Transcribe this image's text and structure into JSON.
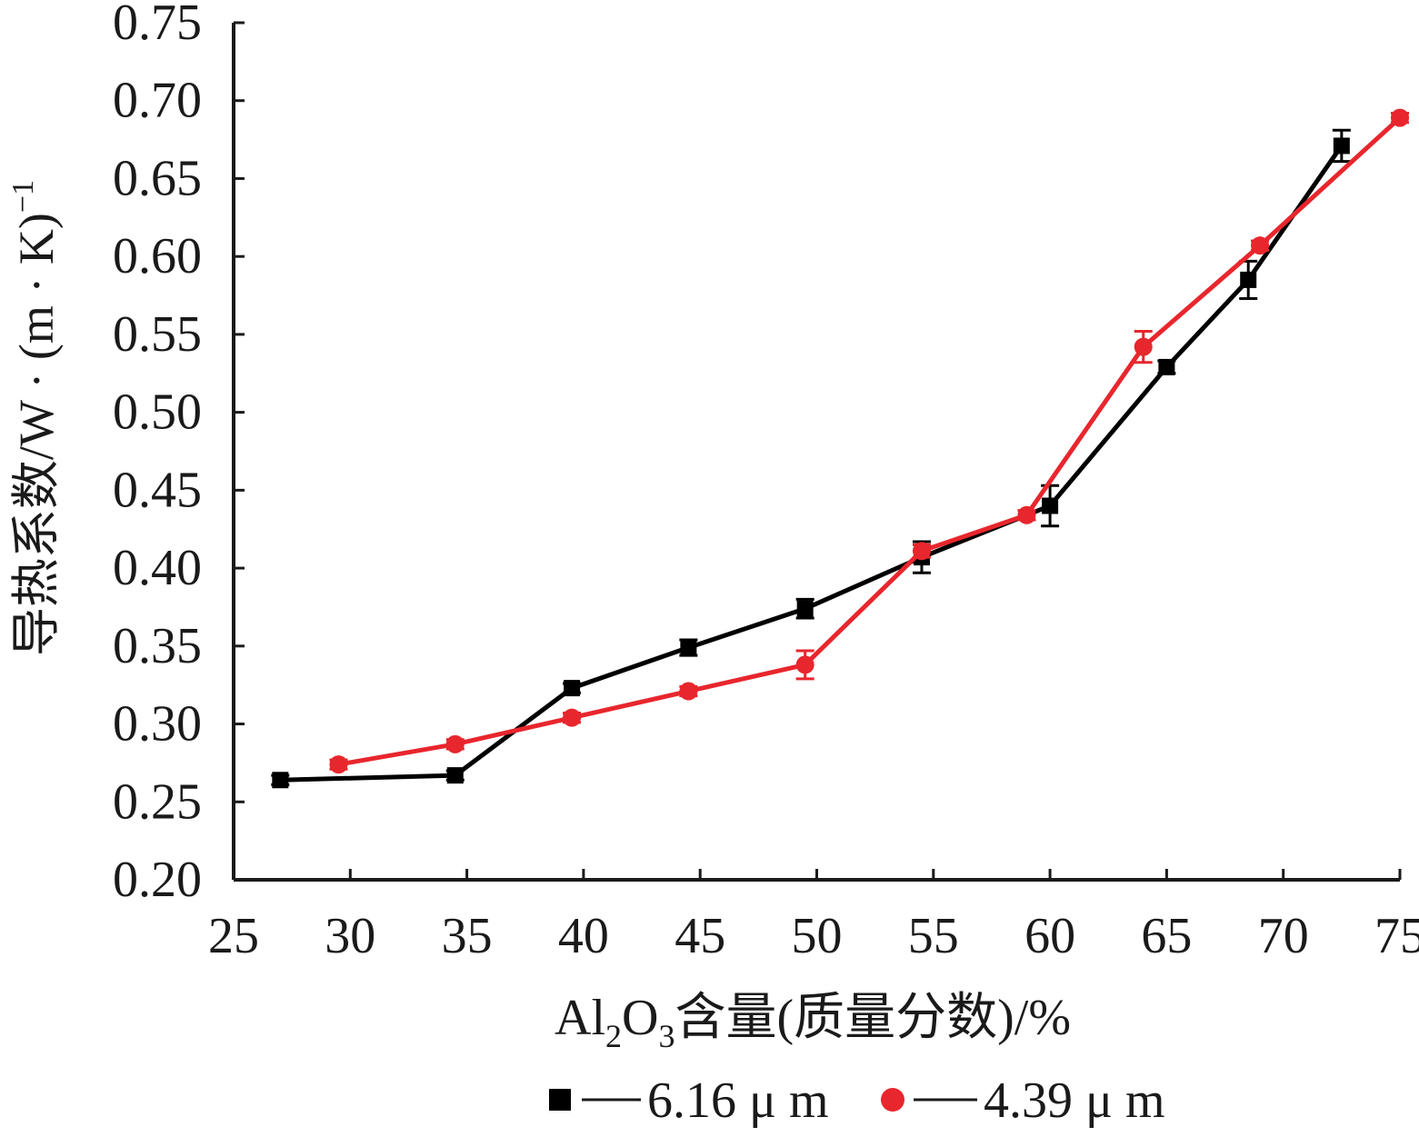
{
  "chart_data": {
    "type": "line",
    "title": "",
    "xlabel": {
      "pre": "Al",
      "sub1": "2",
      "mid": "O",
      "sub2": "3",
      "post": "含量(质量分数)/%"
    },
    "ylabel": {
      "main": "导热系数/W · (m · K)",
      "sup": "−1"
    },
    "xlim": [
      25,
      75
    ],
    "ylim": [
      0.2,
      0.75
    ],
    "xticks": [
      "25",
      "30",
      "35",
      "40",
      "45",
      "50",
      "55",
      "60",
      "65",
      "70",
      "75"
    ],
    "yticks": [
      "0.20",
      "0.25",
      "0.30",
      "0.35",
      "0.40",
      "0.45",
      "0.50",
      "0.55",
      "0.60",
      "0.65",
      "0.70",
      "0.75"
    ],
    "grid": false,
    "legend_position": "bottom-center",
    "series": [
      {
        "name": "6.16 μ m",
        "marker": "square",
        "color": "#000000",
        "x": [
          27.0,
          34.5,
          39.5,
          44.5,
          49.5,
          54.5,
          60.0,
          65.0,
          68.5,
          72.5
        ],
        "y": [
          0.264,
          0.267,
          0.323,
          0.349,
          0.374,
          0.407,
          0.44,
          0.529,
          0.585,
          0.671
        ],
        "err": [
          0.003,
          0.003,
          0.003,
          0.005,
          0.006,
          0.01,
          0.013,
          0.004,
          0.012,
          0.01
        ]
      },
      {
        "name": "4.39 μ m",
        "marker": "circle",
        "color": "#e8262d",
        "x": [
          29.5,
          34.5,
          39.5,
          44.5,
          49.5,
          54.5,
          59.0,
          64.0,
          69.0,
          75.0
        ],
        "y": [
          0.274,
          0.287,
          0.304,
          0.321,
          0.338,
          0.411,
          0.434,
          0.542,
          0.607,
          0.689
        ],
        "err": [
          0.003,
          0.003,
          0.003,
          0.003,
          0.009,
          0.004,
          0.003,
          0.01,
          0.003,
          0.003
        ]
      }
    ]
  }
}
